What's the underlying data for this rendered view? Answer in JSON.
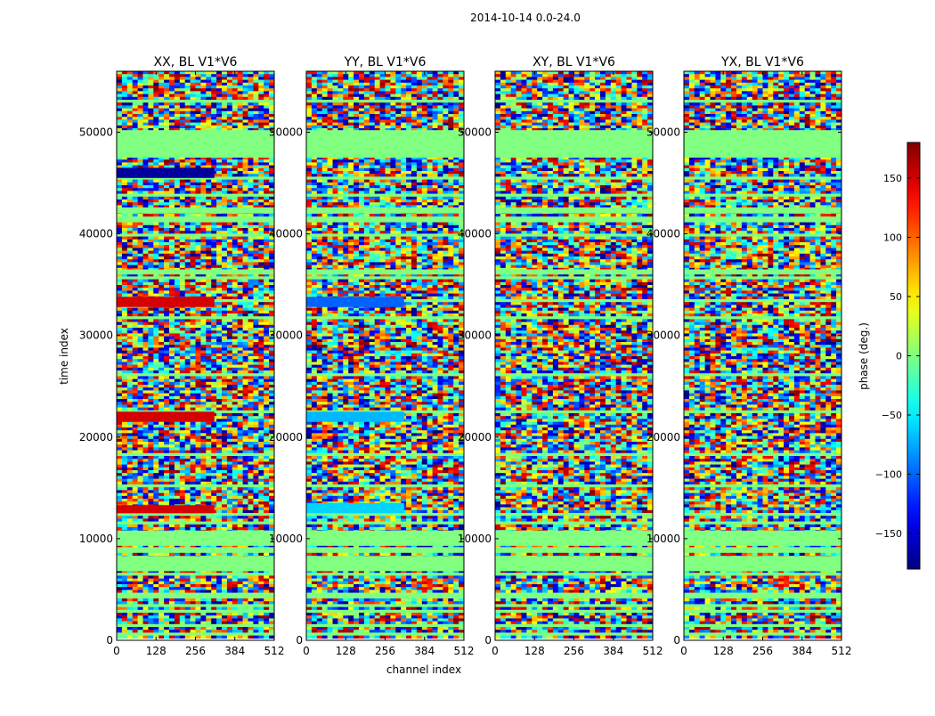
{
  "figure": {
    "suptitle": "2014-10-14 0.0-24.0"
  },
  "chart_data": {
    "type": "heatmap",
    "panels": [
      {
        "title": "XX, BL V1*V6"
      },
      {
        "title": "YY, BL V1*V6"
      },
      {
        "title": "XY, BL V1*V6"
      },
      {
        "title": "YX, BL V1*V6"
      }
    ],
    "xlabel": "channel index",
    "ylabel": "time index",
    "xlim": [
      0,
      512
    ],
    "ylim": [
      0,
      56000
    ],
    "xticks": [
      0,
      128,
      256,
      384,
      512
    ],
    "yticks": [
      0,
      10000,
      20000,
      30000,
      40000,
      50000
    ],
    "colorbar": {
      "label": "phase (deg.)",
      "range": [
        -180,
        180
      ],
      "ticks": [
        -150,
        -100,
        -50,
        0,
        50,
        100,
        150
      ],
      "colormap": "jet"
    },
    "flagged_time_bands": [
      [
        47500,
        50200
      ],
      [
        9300,
        10800
      ],
      [
        6800,
        8300
      ],
      [
        42000,
        42600
      ],
      [
        36000,
        36500
      ]
    ],
    "strong_phase_bands": [
      {
        "panel": "XX, BL V1*V6",
        "range": [
          45500,
          46500
        ],
        "phase": -170
      },
      {
        "panel": "XX, BL V1*V6",
        "range": [
          32800,
          33800
        ],
        "phase": 150
      },
      {
        "panel": "XX, BL V1*V6",
        "range": [
          21500,
          22500
        ],
        "phase": 150
      },
      {
        "panel": "XX, BL V1*V6",
        "range": [
          12500,
          13300
        ],
        "phase": 150
      },
      {
        "panel": "YY, BL V1*V6",
        "range": [
          32800,
          33800
        ],
        "phase": -100
      },
      {
        "panel": "YY, BL V1*V6",
        "range": [
          21500,
          22500
        ],
        "phase": -70
      },
      {
        "panel": "YY, BL V1*V6",
        "range": [
          12500,
          13500
        ],
        "phase": -60
      }
    ]
  }
}
